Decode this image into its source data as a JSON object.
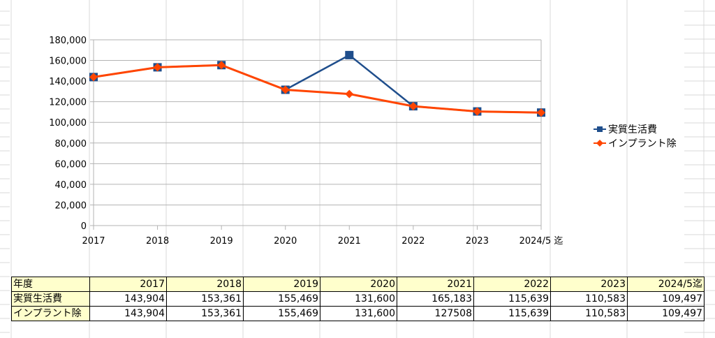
{
  "chart_data": {
    "type": "line",
    "title": "",
    "xlabel": "",
    "ylabel": "",
    "categories": [
      "2017",
      "2018",
      "2019",
      "2020",
      "2021",
      "2022",
      "2023",
      "2024/5 迄"
    ],
    "ylim": [
      0,
      180000
    ],
    "yticks": [
      "0",
      "20,000",
      "40,000",
      "60,000",
      "80,000",
      "100,000",
      "120,000",
      "140,000",
      "160,000",
      "180,000"
    ],
    "grid": "horizontal",
    "legend_position": "right",
    "series": [
      {
        "name": "実質生活費",
        "values": [
          143904,
          153361,
          155469,
          131600,
          165183,
          115639,
          110583,
          109497
        ],
        "color": "#1f4e8c",
        "marker": "square"
      },
      {
        "name": "インプラント除",
        "values": [
          143904,
          153361,
          155469,
          131600,
          127508,
          115639,
          110583,
          109497
        ],
        "color": "#ff4500",
        "marker": "diamond"
      }
    ]
  },
  "table": {
    "header": [
      "年度",
      "2017",
      "2018",
      "2019",
      "2020",
      "2021",
      "2022",
      "2023",
      "2024/5迄"
    ],
    "rows": [
      [
        "実質生活費",
        "143,904",
        "153,361",
        "155,469",
        "131,600",
        "165,183",
        "115,639",
        "110,583",
        "109,497"
      ],
      [
        "インプラント除",
        "143,904",
        "153,361",
        "155,469",
        "131,600",
        "127508",
        "115,639",
        "110,583",
        "109,497"
      ]
    ]
  }
}
